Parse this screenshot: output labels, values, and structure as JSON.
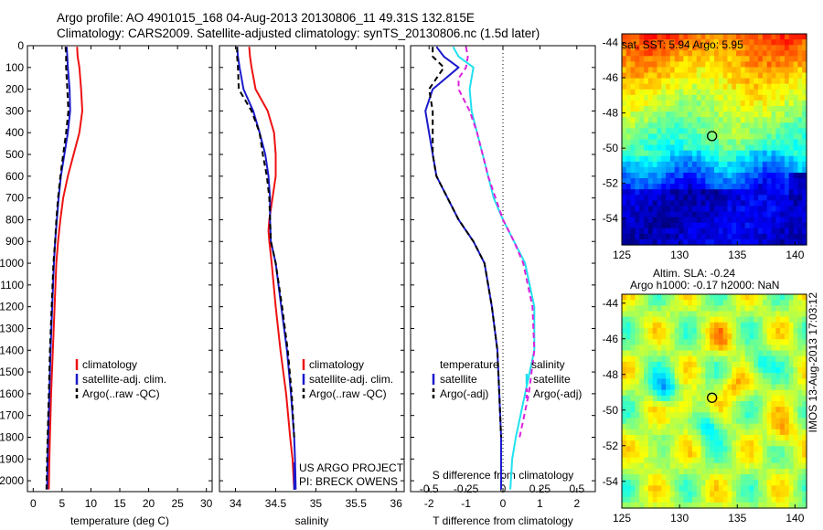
{
  "title": {
    "line1": "Argo profile: AO 4901015_168 04-Aug-2013 20130806_11 49.31S 132.815E",
    "line2": "Climatology: CARS2009. Satellite-adjusted climatology: synTS_20130806.nc (1.5d later)"
  },
  "credit": {
    "project": "US ARGO PROJECT",
    "pi": "PI: BRECK OWENS"
  },
  "side_label": "IMOS 13-Aug-2013 17:03:12",
  "colors": {
    "climatology": "#ee1111",
    "satellite": "#1a1acc",
    "argo": "#000000",
    "satellite_s": "#22e0ee",
    "argo_s": "#dd22dd"
  },
  "chart_data": [
    {
      "type": "line",
      "xlabel": "temperature (deg C)",
      "xlim": [
        -1,
        31
      ],
      "xticks": [
        0,
        5,
        10,
        15,
        20,
        25,
        30
      ],
      "ylim": [
        0,
        2050
      ],
      "yticks": [
        0,
        100,
        200,
        300,
        400,
        500,
        600,
        700,
        800,
        900,
        1000,
        1100,
        1200,
        1300,
        1400,
        1500,
        1600,
        1700,
        1800,
        1900,
        2000
      ],
      "legend": [
        "climatology",
        "satellite-adj. clim.",
        "Argo(..raw -QC)"
      ],
      "series": [
        {
          "name": "climatology",
          "style": "red",
          "points": [
            [
              7.6,
              5
            ],
            [
              7.7,
              50
            ],
            [
              8.0,
              100
            ],
            [
              8.3,
              200
            ],
            [
              8.5,
              300
            ],
            [
              8.0,
              400
            ],
            [
              7.0,
              500
            ],
            [
              6.0,
              600
            ],
            [
              5.2,
              700
            ],
            [
              4.7,
              800
            ],
            [
              4.3,
              900
            ],
            [
              4.0,
              1000
            ],
            [
              3.7,
              1200
            ],
            [
              3.4,
              1400
            ],
            [
              3.1,
              1600
            ],
            [
              2.9,
              1800
            ],
            [
              2.8,
              1900
            ],
            [
              2.7,
              2040
            ]
          ]
        },
        {
          "name": "satellite-adj. clim.",
          "style": "blue",
          "points": [
            [
              5.8,
              5
            ],
            [
              5.9,
              50
            ],
            [
              6.0,
              100
            ],
            [
              6.3,
              200
            ],
            [
              6.4,
              300
            ],
            [
              6.0,
              400
            ],
            [
              5.4,
              500
            ],
            [
              4.8,
              600
            ],
            [
              4.4,
              700
            ],
            [
              4.1,
              800
            ],
            [
              3.8,
              900
            ],
            [
              3.6,
              1000
            ],
            [
              3.3,
              1200
            ],
            [
              3.0,
              1400
            ],
            [
              2.8,
              1600
            ],
            [
              2.6,
              1800
            ],
            [
              2.5,
              1900
            ],
            [
              2.4,
              2040
            ]
          ]
        },
        {
          "name": "Argo(..raw -QC)",
          "style": "black-dash",
          "points": [
            [
              5.6,
              5
            ],
            [
              5.7,
              50
            ],
            [
              5.7,
              100
            ],
            [
              5.9,
              200
            ],
            [
              6.1,
              300
            ],
            [
              5.7,
              400
            ],
            [
              5.2,
              500
            ],
            [
              4.7,
              600
            ],
            [
              4.3,
              700
            ],
            [
              4.0,
              800
            ],
            [
              3.8,
              900
            ],
            [
              3.5,
              1000
            ],
            [
              3.2,
              1200
            ],
            [
              2.9,
              1400
            ],
            [
              2.7,
              1600
            ],
            [
              2.5,
              1800
            ],
            [
              2.4,
              1900
            ],
            [
              2.3,
              2040
            ]
          ]
        }
      ]
    },
    {
      "type": "line",
      "xlabel": "salinity",
      "xlim": [
        33.8,
        36.1
      ],
      "xticks": [
        34,
        34.5,
        35,
        35.5,
        36
      ],
      "ylim": [
        0,
        2050
      ],
      "legend": [
        "climatology",
        "satellite-adj. clim.",
        "Argo(..raw -QC)"
      ],
      "series": [
        {
          "name": "climatology",
          "style": "red",
          "points": [
            [
              34.17,
              5
            ],
            [
              34.18,
              50
            ],
            [
              34.2,
              100
            ],
            [
              34.25,
              200
            ],
            [
              34.4,
              300
            ],
            [
              34.48,
              400
            ],
            [
              34.5,
              500
            ],
            [
              34.5,
              600
            ],
            [
              34.46,
              700
            ],
            [
              34.42,
              800
            ],
            [
              34.41,
              850
            ],
            [
              34.42,
              900
            ],
            [
              34.45,
              1000
            ],
            [
              34.5,
              1200
            ],
            [
              34.56,
              1400
            ],
            [
              34.63,
              1600
            ],
            [
              34.68,
              1800
            ],
            [
              34.71,
              1900
            ],
            [
              34.73,
              2040
            ]
          ]
        },
        {
          "name": "satellite-adj. clim.",
          "style": "blue",
          "points": [
            [
              34.02,
              5
            ],
            [
              34.03,
              50
            ],
            [
              34.05,
              100
            ],
            [
              34.1,
              200
            ],
            [
              34.22,
              300
            ],
            [
              34.3,
              400
            ],
            [
              34.37,
              500
            ],
            [
              34.41,
              600
            ],
            [
              34.43,
              700
            ],
            [
              34.43,
              800
            ],
            [
              34.44,
              900
            ],
            [
              34.5,
              1000
            ],
            [
              34.57,
              1200
            ],
            [
              34.64,
              1400
            ],
            [
              34.69,
              1600
            ],
            [
              34.73,
              1800
            ],
            [
              34.74,
              1900
            ],
            [
              34.75,
              2040
            ]
          ]
        },
        {
          "name": "Argo(..raw -QC)",
          "style": "black-dash",
          "points": [
            [
              34.02,
              5
            ],
            [
              34.02,
              50
            ],
            [
              34.03,
              100
            ],
            [
              34.04,
              200
            ],
            [
              34.2,
              300
            ],
            [
              34.25,
              350
            ],
            [
              34.3,
              400
            ],
            [
              34.34,
              500
            ],
            [
              34.39,
              600
            ],
            [
              34.42,
              700
            ],
            [
              34.43,
              800
            ],
            [
              34.44,
              900
            ],
            [
              34.5,
              1000
            ],
            [
              34.58,
              1200
            ],
            [
              34.65,
              1400
            ],
            [
              34.7,
              1600
            ],
            [
              34.73,
              1800
            ]
          ]
        }
      ]
    },
    {
      "type": "line",
      "xlabel": "T difference from climatology",
      "xlabel_top": "S difference from climatology",
      "xlim": [
        -2.5,
        2.5
      ],
      "xticks_bottom": [
        -2,
        -1,
        0,
        1,
        2
      ],
      "xticks_top": [
        "-0.5",
        "-0.25",
        "0",
        "0.25",
        "0.5"
      ],
      "legend": {
        "temperature": [
          "satellite",
          "Argo(-adj)"
        ],
        "salinity": [
          "satellite",
          "Argo(-adj)"
        ]
      },
      "series": [
        {
          "name": "temperature satellite",
          "style": "blue",
          "points": [
            [
              -1.8,
              5
            ],
            [
              -1.6,
              50
            ],
            [
              -1.2,
              100
            ],
            [
              -1.9,
              200
            ],
            [
              -2.1,
              300
            ],
            [
              -2.0,
              400
            ],
            [
              -1.8,
              600
            ],
            [
              -1.5,
              700
            ],
            [
              -1.2,
              800
            ],
            [
              -0.8,
              900
            ],
            [
              -0.5,
              1000
            ],
            [
              -0.3,
              1200
            ],
            [
              -0.15,
              1400
            ],
            [
              -0.1,
              1600
            ],
            [
              -0.05,
              1800
            ],
            [
              -0.05,
              2040
            ]
          ]
        },
        {
          "name": "temperature Argo(-adj)",
          "style": "black-dash",
          "points": [
            [
              -1.9,
              5
            ],
            [
              -1.9,
              50
            ],
            [
              -1.6,
              100
            ],
            [
              -2.0,
              200
            ],
            [
              -1.9,
              300
            ],
            [
              -1.9,
              400
            ],
            [
              -1.9,
              500
            ],
            [
              -1.8,
              600
            ],
            [
              -1.5,
              700
            ],
            [
              -1.2,
              800
            ],
            [
              -0.8,
              900
            ],
            [
              -0.5,
              1000
            ],
            [
              -0.3,
              1200
            ],
            [
              -0.15,
              1400
            ],
            [
              -0.1,
              1600
            ],
            [
              -0.05,
              1800
            ]
          ]
        },
        {
          "name": "salinity satellite",
          "style": "cyan",
          "points": [
            [
              -1.35,
              5
            ],
            [
              -1.2,
              50
            ],
            [
              -0.8,
              100
            ],
            [
              -0.9,
              200
            ],
            [
              -0.85,
              300
            ],
            [
              -0.7,
              400
            ],
            [
              -0.55,
              500
            ],
            [
              -0.4,
              600
            ],
            [
              -0.25,
              700
            ],
            [
              0,
              800
            ],
            [
              0.3,
              900
            ],
            [
              0.6,
              1000
            ],
            [
              0.85,
              1200
            ],
            [
              0.85,
              1400
            ],
            [
              0.6,
              1600
            ],
            [
              0.35,
              1800
            ],
            [
              0.25,
              1900
            ],
            [
              0.2,
              2040
            ]
          ]
        },
        {
          "name": "salinity Argo(-adj)",
          "style": "magenta-dash",
          "points": [
            [
              -1.0,
              5
            ],
            [
              -0.95,
              50
            ],
            [
              -1.0,
              100
            ],
            [
              -1.2,
              150
            ],
            [
              -1.2,
              200
            ],
            [
              -0.9,
              300
            ],
            [
              -0.7,
              400
            ],
            [
              -0.55,
              500
            ],
            [
              -0.4,
              600
            ],
            [
              -0.2,
              700
            ],
            [
              0,
              800
            ],
            [
              0.3,
              900
            ],
            [
              0.55,
              1000
            ],
            [
              0.8,
              1200
            ],
            [
              0.85,
              1400
            ],
            [
              0.7,
              1600
            ],
            [
              0.45,
              1800
            ]
          ]
        }
      ]
    },
    {
      "type": "heatmap",
      "title": "sat. SST: 5.94  Argo: 5.95",
      "xticks": [
        125,
        130,
        135,
        140
      ],
      "yticks": [
        -44,
        -46,
        -48,
        -50,
        -52,
        -54
      ],
      "xlim": [
        125,
        141
      ],
      "ylim": [
        -55.5,
        -43.5
      ],
      "marker": [
        132.815,
        -49.31
      ]
    },
    {
      "type": "heatmap",
      "title": "Altim. SLA: -0.24",
      "subtitle": "Argo h1000: -0.17 h2000: NaN",
      "xticks": [
        125,
        130,
        135,
        140
      ],
      "yticks": [
        -44,
        -46,
        -48,
        -50,
        -52,
        -54
      ],
      "xlim": [
        125,
        141
      ],
      "ylim": [
        -55.5,
        -43.5
      ],
      "marker": [
        132.815,
        -49.31
      ]
    }
  ]
}
